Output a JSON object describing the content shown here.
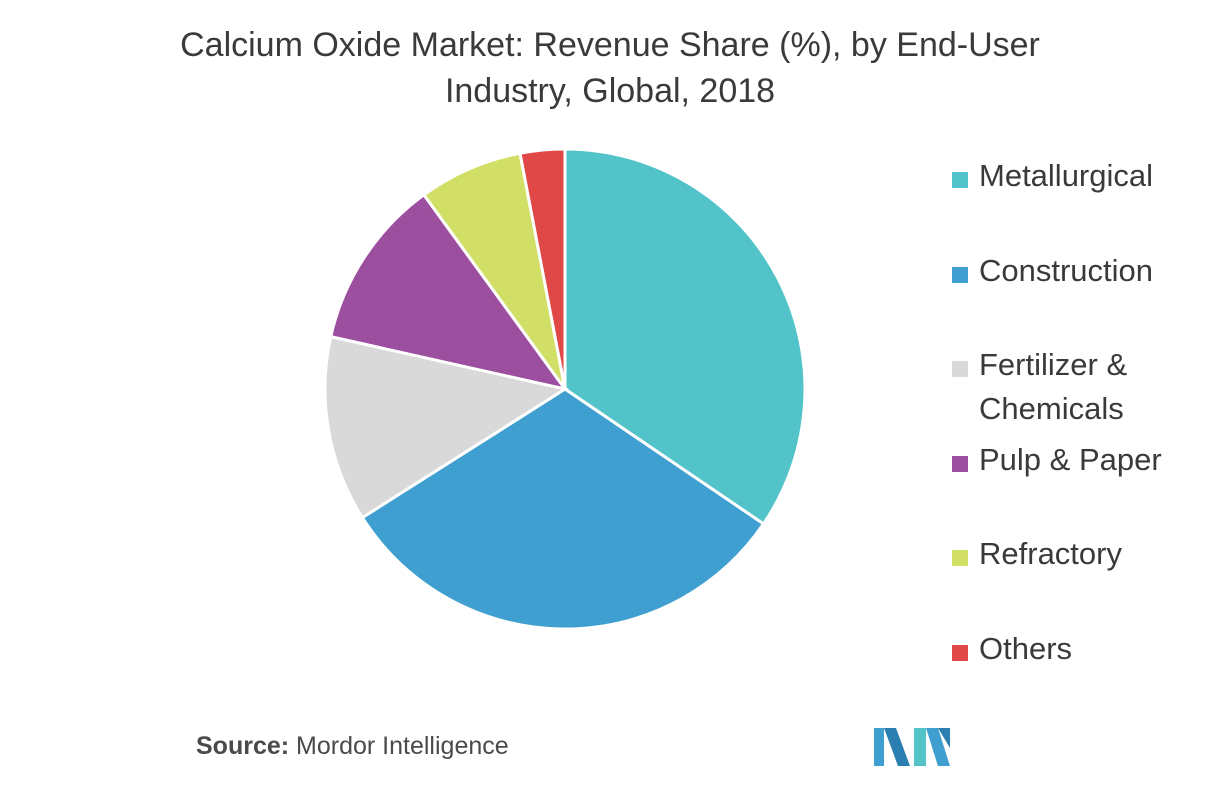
{
  "chart_data": {
    "type": "pie",
    "title_lines": [
      "Calcium Oxide Market: Revenue Share (%), by End-User",
      "Industry, Global, 2018"
    ],
    "categories": [
      "Metallurgical",
      "Construction",
      "Fertilizer & Chemicals",
      "Pulp & Paper",
      "Refractory",
      "Others"
    ],
    "legend_labels": [
      [
        "Metallurgical"
      ],
      [
        "Construction"
      ],
      [
        "Fertilizer &",
        "Chemicals"
      ],
      [
        "Pulp & Paper"
      ],
      [
        "Refractory"
      ],
      [
        "Others"
      ]
    ],
    "values": [
      34.5,
      31.5,
      12.5,
      11.5,
      7.0,
      3.0
    ],
    "colors": [
      "#52c4c9",
      "#3e9fd0",
      "#d9d9d9",
      "#9c4f9f",
      "#d2df66",
      "#e04848"
    ],
    "legend_position": "right"
  },
  "source": {
    "label": "Source:",
    "text": "Mordor Intelligence"
  },
  "logo": {
    "icon": "mordor-intelligence-logo"
  }
}
